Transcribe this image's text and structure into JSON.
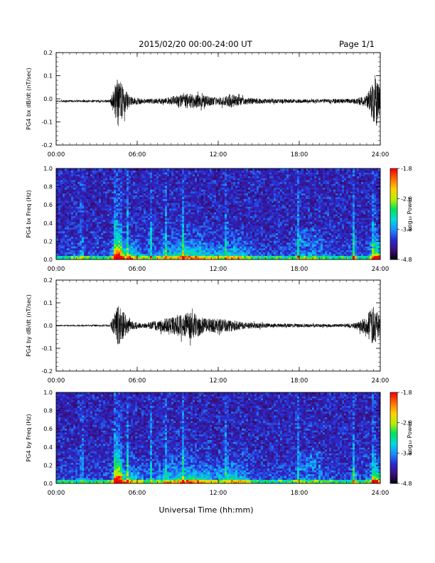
{
  "header": {
    "title": "2015/02/20  00:00-24:00 UT",
    "page": "Page 1/1"
  },
  "footer": {
    "xlabel": "Universal Time (hh:mm)"
  },
  "colorbar": {
    "label": "Log₁₀ Power",
    "ticks": [
      "-1.8",
      "-2.8",
      "-3.8",
      "-4.8"
    ],
    "range": [
      -4.8,
      -1.8
    ],
    "colors": [
      "#000000",
      "#3a0f7a",
      "#2a2ad0",
      "#1e8cff",
      "#00dcdc",
      "#00e060",
      "#b8f000",
      "#ffd000",
      "#ff7000",
      "#ff0000"
    ]
  },
  "chart_data": [
    {
      "type": "line",
      "ylabel": "PG4 bx dB/dt (nT/sec)",
      "xlim": [
        0,
        24
      ],
      "ylim": [
        -0.2,
        0.2
      ],
      "x_tick_labels": [
        "00:00",
        "06:00",
        "12:00",
        "18:00",
        "24:00"
      ],
      "y_tick_labels": [
        "0.2",
        "0.1",
        "0.0",
        "-0.1",
        "-0.2"
      ],
      "baseline": -0.01,
      "envelope": [
        [
          0,
          0.004
        ],
        [
          4,
          0.006
        ],
        [
          4.3,
          0.06
        ],
        [
          4.6,
          0.12
        ],
        [
          5.0,
          0.06
        ],
        [
          5.5,
          0.02
        ],
        [
          6.5,
          0.01
        ],
        [
          8,
          0.012
        ],
        [
          9,
          0.025
        ],
        [
          10,
          0.035
        ],
        [
          11,
          0.025
        ],
        [
          12,
          0.015
        ],
        [
          13,
          0.03
        ],
        [
          13.5,
          0.02
        ],
        [
          14,
          0.015
        ],
        [
          16,
          0.01
        ],
        [
          18,
          0.008
        ],
        [
          20,
          0.008
        ],
        [
          21,
          0.01
        ],
        [
          22,
          0.01
        ],
        [
          23,
          0.025
        ],
        [
          23.4,
          0.08
        ],
        [
          23.8,
          0.12
        ],
        [
          24,
          0.06
        ]
      ]
    },
    {
      "type": "heatmap",
      "ylabel": "PG4 bx Freq (Hz)",
      "xlim": [
        0,
        24
      ],
      "ylim": [
        0,
        1.0
      ],
      "x_tick_labels": [
        "00:00",
        "06:00",
        "12:00",
        "18:00",
        "24:00"
      ],
      "y_tick_labels": [
        "1.0",
        "0.8",
        "0.6",
        "0.4",
        "0.2",
        "0.0"
      ]
    },
    {
      "type": "line",
      "ylabel": "PG4 by dB/dt (nT/sec)",
      "xlim": [
        0,
        24
      ],
      "ylim": [
        -0.2,
        0.2
      ],
      "x_tick_labels": [
        "00:00",
        "06:00",
        "12:00",
        "18:00",
        "24:00"
      ],
      "y_tick_labels": [
        "0.2",
        "0.1",
        "0.0",
        "-0.1",
        "-0.2"
      ],
      "baseline": 0.0,
      "envelope": [
        [
          0,
          0.003
        ],
        [
          4,
          0.005
        ],
        [
          4.3,
          0.05
        ],
        [
          4.6,
          0.09
        ],
        [
          5.0,
          0.06
        ],
        [
          5.5,
          0.02
        ],
        [
          6.5,
          0.01
        ],
        [
          8,
          0.03
        ],
        [
          9,
          0.045
        ],
        [
          10,
          0.06
        ],
        [
          10.5,
          0.05
        ],
        [
          11,
          0.03
        ],
        [
          12,
          0.03
        ],
        [
          13,
          0.025
        ],
        [
          14,
          0.015
        ],
        [
          16,
          0.008
        ],
        [
          18,
          0.008
        ],
        [
          20,
          0.007
        ],
        [
          21,
          0.007
        ],
        [
          22,
          0.01
        ],
        [
          23,
          0.04
        ],
        [
          23.4,
          0.09
        ],
        [
          23.8,
          0.06
        ],
        [
          24,
          0.04
        ]
      ]
    },
    {
      "type": "heatmap",
      "ylabel": "PG4 by Freq (Hz)",
      "xlim": [
        0,
        24
      ],
      "ylim": [
        0,
        1.0
      ],
      "x_tick_labels": [
        "00:00",
        "06:00",
        "12:00",
        "18:00",
        "24:00"
      ],
      "y_tick_labels": [
        "1.0",
        "0.8",
        "0.6",
        "0.4",
        "0.2",
        "0.0"
      ]
    }
  ]
}
